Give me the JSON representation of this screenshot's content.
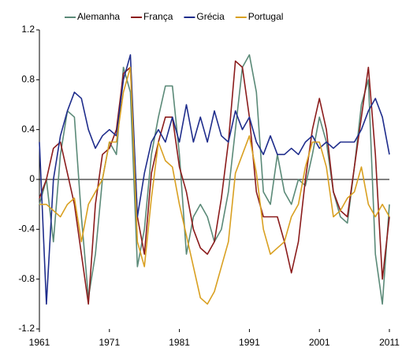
{
  "chart_data": {
    "type": "line",
    "x": [
      1961,
      1962,
      1963,
      1964,
      1965,
      1966,
      1967,
      1968,
      1969,
      1970,
      1971,
      1972,
      1973,
      1974,
      1975,
      1976,
      1977,
      1978,
      1979,
      1980,
      1981,
      1982,
      1983,
      1984,
      1985,
      1986,
      1987,
      1988,
      1989,
      1990,
      1991,
      1992,
      1993,
      1994,
      1995,
      1996,
      1997,
      1998,
      1999,
      2000,
      2001,
      2002,
      2003,
      2004,
      2005,
      2006,
      2007,
      2008,
      2009,
      2010,
      2011
    ],
    "series": [
      {
        "name": "Alemanha",
        "color": "#5b8a78",
        "values": [
          -0.2,
          0,
          -0.5,
          0.2,
          0.55,
          0.5,
          -0.3,
          -0.95,
          -0.6,
          0,
          0.3,
          0.2,
          0.9,
          0.7,
          -0.7,
          -0.4,
          0.2,
          0.5,
          0.75,
          0.75,
          0.2,
          -0.6,
          -0.3,
          -0.2,
          -0.3,
          -0.5,
          -0.4,
          -0.1,
          0.4,
          0.9,
          1.0,
          0.7,
          -0.1,
          -0.2,
          0.2,
          -0.1,
          -0.2,
          0,
          -0.05,
          0.2,
          0.5,
          0.3,
          -0.1,
          -0.3,
          -0.35,
          0.1,
          0.6,
          0.8,
          -0.6,
          -1.0,
          -0.2
        ]
      },
      {
        "name": "França",
        "color": "#8b1c1c",
        "values": [
          -0.15,
          0,
          0.25,
          0.3,
          0.05,
          -0.2,
          -0.6,
          -1.0,
          -0.2,
          0.2,
          0.25,
          0.4,
          0.85,
          0.9,
          -0.3,
          -0.6,
          0.05,
          0.3,
          0.5,
          0.5,
          0.1,
          -0.1,
          -0.4,
          -0.55,
          -0.6,
          -0.5,
          -0.15,
          0.3,
          0.95,
          0.9,
          0.5,
          -0.1,
          -0.3,
          -0.3,
          -0.3,
          -0.5,
          -0.75,
          -0.5,
          0,
          0.4,
          0.65,
          0.4,
          -0.1,
          -0.25,
          -0.3,
          0.1,
          0.5,
          0.9,
          0.2,
          -0.8,
          -0.3
        ]
      },
      {
        "name": "Grécia",
        "color": "#1f2d8c",
        "values": [
          0.3,
          -1.0,
          0,
          0.35,
          0.55,
          0.7,
          0.65,
          0.4,
          0.25,
          0.35,
          0.4,
          0.35,
          0.8,
          1.0,
          -0.3,
          0.05,
          0.3,
          0.4,
          0.3,
          0.5,
          0.3,
          0.6,
          0.3,
          0.5,
          0.3,
          0.55,
          0.35,
          0.3,
          0.55,
          0.4,
          0.5,
          0.3,
          0.2,
          0.35,
          0.2,
          0.2,
          0.25,
          0.2,
          0.3,
          0.35,
          0.25,
          0.3,
          0.25,
          0.3,
          0.3,
          0.3,
          0.4,
          0.55,
          0.65,
          0.5,
          0.2
        ]
      },
      {
        "name": "Portugal",
        "color": "#d9a021",
        "values": [
          -0.2,
          -0.2,
          -0.25,
          -0.3,
          -0.2,
          -0.15,
          -0.5,
          -0.2,
          -0.1,
          0,
          0.3,
          0.3,
          0.7,
          0.9,
          -0.5,
          -0.7,
          -0.15,
          0.3,
          0.15,
          0.1,
          -0.2,
          -0.45,
          -0.7,
          -0.95,
          -1.0,
          -0.9,
          -0.7,
          -0.5,
          0.05,
          0.2,
          0.35,
          0.05,
          -0.4,
          -0.6,
          -0.55,
          -0.5,
          -0.3,
          -0.2,
          0.1,
          0.3,
          0.3,
          0.1,
          -0.3,
          -0.25,
          -0.15,
          -0.1,
          0.1,
          -0.2,
          -0.3,
          -0.2,
          -0.3
        ]
      }
    ],
    "xlim": [
      1961,
      2011
    ],
    "xticks": [
      1961,
      1971,
      1981,
      1991,
      2001,
      2011
    ],
    "ylim": [
      -1.2,
      1.2
    ],
    "yticks": [
      -1.2,
      -0.8,
      -0.4,
      0,
      0.4,
      0.8,
      1.2
    ]
  }
}
